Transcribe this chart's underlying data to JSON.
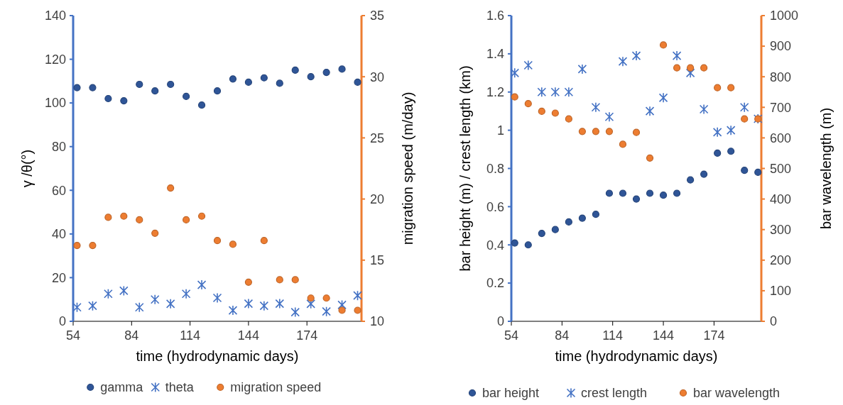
{
  "chart_data": [
    {
      "type": "scatter",
      "xlabel": "time (hydrodynamic days)",
      "ylabel": "γ /θ(°)",
      "y2label": "migration speed (m/day)",
      "x": [
        56,
        64,
        72,
        80,
        88,
        96,
        104,
        112,
        120,
        128,
        136,
        144,
        152,
        160,
        168,
        176,
        184,
        192,
        200
      ],
      "xlim": [
        54,
        202
      ],
      "xticks": [
        54,
        84,
        114,
        144,
        174
      ],
      "ylim": [
        0,
        140
      ],
      "yticks": [
        0,
        20,
        40,
        60,
        80,
        100,
        120,
        140
      ],
      "y2lim": [
        10,
        35
      ],
      "y2ticks": [
        10,
        15,
        20,
        25,
        30,
        35
      ],
      "legend": "bottom",
      "series": [
        {
          "name": "gamma",
          "color": "#2f5597",
          "marker": "circle",
          "values": [
            107,
            107,
            102,
            101,
            108.5,
            105.5,
            108.5,
            103,
            99,
            105.5,
            111,
            109.5,
            111.5,
            109,
            115,
            112,
            114,
            115.5,
            109.5
          ]
        },
        {
          "name": "theta",
          "color": "#4472c4",
          "marker": "cross",
          "values": [
            6.4,
            7.1,
            12.6,
            14,
            6.4,
            10,
            8,
            12.6,
            16.7,
            10.7,
            5,
            8.1,
            7.1,
            8.1,
            4.2,
            8,
            4.5,
            7.5,
            11.8
          ]
        },
        {
          "name": "migration speed",
          "color": "#ed7d31",
          "marker": "circle",
          "axis": "y2",
          "values": [
            16.2,
            16.2,
            18.5,
            18.6,
            18.3,
            17.2,
            20.9,
            18.3,
            18.6,
            16.6,
            16.3,
            13.2,
            16.6,
            13.4,
            13.4,
            11.9,
            11.9,
            10.9,
            10.9
          ]
        }
      ]
    },
    {
      "type": "scatter",
      "xlabel": "time (hydrodynamic days)",
      "ylabel": "bar height (m) / crest length (km)",
      "y2label": "bar wavelength (m)",
      "x": [
        56,
        64,
        72,
        80,
        88,
        96,
        104,
        112,
        120,
        128,
        136,
        144,
        152,
        160,
        168,
        176,
        184,
        192,
        200
      ],
      "xlim": [
        54,
        202
      ],
      "xticks": [
        54,
        84,
        114,
        144,
        174
      ],
      "ylim": [
        0,
        1.6
      ],
      "yticks": [
        0,
        0.2,
        0.4,
        0.6,
        0.8,
        1,
        1.2,
        1.4,
        1.6
      ],
      "y2lim": [
        0,
        1000
      ],
      "y2ticks": [
        0,
        100,
        200,
        300,
        400,
        500,
        600,
        700,
        800,
        900,
        1000
      ],
      "legend": "bottom",
      "series": [
        {
          "name": "bar height",
          "color": "#2f5597",
          "marker": "circle",
          "values": [
            0.41,
            0.4,
            0.46,
            0.48,
            0.52,
            0.54,
            0.56,
            0.67,
            0.67,
            0.64,
            0.67,
            0.66,
            0.67,
            0.74,
            0.77,
            0.88,
            0.89,
            0.79,
            0.78
          ]
        },
        {
          "name": "crest length",
          "color": "#4472c4",
          "marker": "cross",
          "values": [
            1.3,
            1.34,
            1.2,
            1.2,
            1.2,
            1.32,
            1.12,
            1.07,
            1.36,
            1.39,
            1.1,
            1.17,
            1.39,
            1.3,
            1.11,
            0.99,
            1,
            1.12,
            1.06
          ]
        },
        {
          "name": "bar wavelength",
          "color": "#ed7d31",
          "marker": "circle",
          "axis": "y2",
          "values": [
            734,
            712,
            687,
            681,
            662,
            621,
            621,
            621,
            579,
            618,
            534,
            904,
            829,
            829,
            829,
            764,
            764,
            662,
            662
          ]
        }
      ]
    }
  ]
}
